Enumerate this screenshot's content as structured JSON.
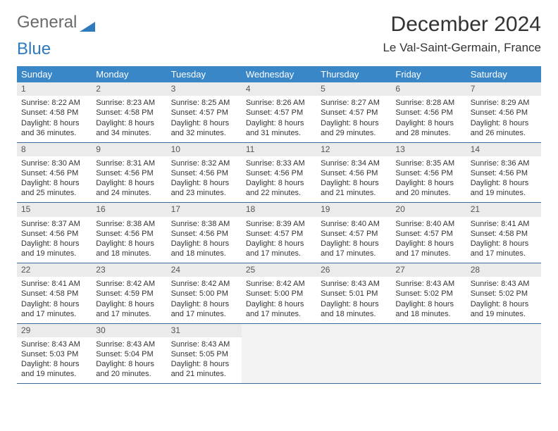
{
  "brand": {
    "part1": "General",
    "part2": "Blue"
  },
  "title": "December 2024",
  "location": "Le Val-Saint-Germain, France",
  "colors": {
    "header_bg": "#3a87c8",
    "header_text": "#ffffff",
    "row_border": "#3a6a9a",
    "daynum_bg": "#ebebeb",
    "logo_gray": "#6a6a6a",
    "logo_blue": "#2f7abf"
  },
  "dow": [
    "Sunday",
    "Monday",
    "Tuesday",
    "Wednesday",
    "Thursday",
    "Friday",
    "Saturday"
  ],
  "weeks": [
    [
      {
        "n": "1",
        "sr": "Sunrise: 8:22 AM",
        "ss": "Sunset: 4:58 PM",
        "dl": "Daylight: 8 hours and 36 minutes."
      },
      {
        "n": "2",
        "sr": "Sunrise: 8:23 AM",
        "ss": "Sunset: 4:58 PM",
        "dl": "Daylight: 8 hours and 34 minutes."
      },
      {
        "n": "3",
        "sr": "Sunrise: 8:25 AM",
        "ss": "Sunset: 4:57 PM",
        "dl": "Daylight: 8 hours and 32 minutes."
      },
      {
        "n": "4",
        "sr": "Sunrise: 8:26 AM",
        "ss": "Sunset: 4:57 PM",
        "dl": "Daylight: 8 hours and 31 minutes."
      },
      {
        "n": "5",
        "sr": "Sunrise: 8:27 AM",
        "ss": "Sunset: 4:57 PM",
        "dl": "Daylight: 8 hours and 29 minutes."
      },
      {
        "n": "6",
        "sr": "Sunrise: 8:28 AM",
        "ss": "Sunset: 4:56 PM",
        "dl": "Daylight: 8 hours and 28 minutes."
      },
      {
        "n": "7",
        "sr": "Sunrise: 8:29 AM",
        "ss": "Sunset: 4:56 PM",
        "dl": "Daylight: 8 hours and 26 minutes."
      }
    ],
    [
      {
        "n": "8",
        "sr": "Sunrise: 8:30 AM",
        "ss": "Sunset: 4:56 PM",
        "dl": "Daylight: 8 hours and 25 minutes."
      },
      {
        "n": "9",
        "sr": "Sunrise: 8:31 AM",
        "ss": "Sunset: 4:56 PM",
        "dl": "Daylight: 8 hours and 24 minutes."
      },
      {
        "n": "10",
        "sr": "Sunrise: 8:32 AM",
        "ss": "Sunset: 4:56 PM",
        "dl": "Daylight: 8 hours and 23 minutes."
      },
      {
        "n": "11",
        "sr": "Sunrise: 8:33 AM",
        "ss": "Sunset: 4:56 PM",
        "dl": "Daylight: 8 hours and 22 minutes."
      },
      {
        "n": "12",
        "sr": "Sunrise: 8:34 AM",
        "ss": "Sunset: 4:56 PM",
        "dl": "Daylight: 8 hours and 21 minutes."
      },
      {
        "n": "13",
        "sr": "Sunrise: 8:35 AM",
        "ss": "Sunset: 4:56 PM",
        "dl": "Daylight: 8 hours and 20 minutes."
      },
      {
        "n": "14",
        "sr": "Sunrise: 8:36 AM",
        "ss": "Sunset: 4:56 PM",
        "dl": "Daylight: 8 hours and 19 minutes."
      }
    ],
    [
      {
        "n": "15",
        "sr": "Sunrise: 8:37 AM",
        "ss": "Sunset: 4:56 PM",
        "dl": "Daylight: 8 hours and 19 minutes."
      },
      {
        "n": "16",
        "sr": "Sunrise: 8:38 AM",
        "ss": "Sunset: 4:56 PM",
        "dl": "Daylight: 8 hours and 18 minutes."
      },
      {
        "n": "17",
        "sr": "Sunrise: 8:38 AM",
        "ss": "Sunset: 4:56 PM",
        "dl": "Daylight: 8 hours and 18 minutes."
      },
      {
        "n": "18",
        "sr": "Sunrise: 8:39 AM",
        "ss": "Sunset: 4:57 PM",
        "dl": "Daylight: 8 hours and 17 minutes."
      },
      {
        "n": "19",
        "sr": "Sunrise: 8:40 AM",
        "ss": "Sunset: 4:57 PM",
        "dl": "Daylight: 8 hours and 17 minutes."
      },
      {
        "n": "20",
        "sr": "Sunrise: 8:40 AM",
        "ss": "Sunset: 4:57 PM",
        "dl": "Daylight: 8 hours and 17 minutes."
      },
      {
        "n": "21",
        "sr": "Sunrise: 8:41 AM",
        "ss": "Sunset: 4:58 PM",
        "dl": "Daylight: 8 hours and 17 minutes."
      }
    ],
    [
      {
        "n": "22",
        "sr": "Sunrise: 8:41 AM",
        "ss": "Sunset: 4:58 PM",
        "dl": "Daylight: 8 hours and 17 minutes."
      },
      {
        "n": "23",
        "sr": "Sunrise: 8:42 AM",
        "ss": "Sunset: 4:59 PM",
        "dl": "Daylight: 8 hours and 17 minutes."
      },
      {
        "n": "24",
        "sr": "Sunrise: 8:42 AM",
        "ss": "Sunset: 5:00 PM",
        "dl": "Daylight: 8 hours and 17 minutes."
      },
      {
        "n": "25",
        "sr": "Sunrise: 8:42 AM",
        "ss": "Sunset: 5:00 PM",
        "dl": "Daylight: 8 hours and 17 minutes."
      },
      {
        "n": "26",
        "sr": "Sunrise: 8:43 AM",
        "ss": "Sunset: 5:01 PM",
        "dl": "Daylight: 8 hours and 18 minutes."
      },
      {
        "n": "27",
        "sr": "Sunrise: 8:43 AM",
        "ss": "Sunset: 5:02 PM",
        "dl": "Daylight: 8 hours and 18 minutes."
      },
      {
        "n": "28",
        "sr": "Sunrise: 8:43 AM",
        "ss": "Sunset: 5:02 PM",
        "dl": "Daylight: 8 hours and 19 minutes."
      }
    ],
    [
      {
        "n": "29",
        "sr": "Sunrise: 8:43 AM",
        "ss": "Sunset: 5:03 PM",
        "dl": "Daylight: 8 hours and 19 minutes."
      },
      {
        "n": "30",
        "sr": "Sunrise: 8:43 AM",
        "ss": "Sunset: 5:04 PM",
        "dl": "Daylight: 8 hours and 20 minutes."
      },
      {
        "n": "31",
        "sr": "Sunrise: 8:43 AM",
        "ss": "Sunset: 5:05 PM",
        "dl": "Daylight: 8 hours and 21 minutes."
      },
      null,
      null,
      null,
      null
    ]
  ]
}
